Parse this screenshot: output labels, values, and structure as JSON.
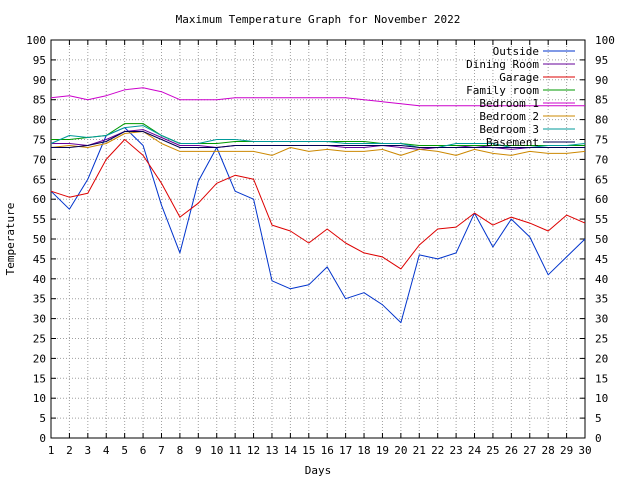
{
  "chart_data": {
    "type": "line",
    "title": "Maximum Temperature Graph for November 2022",
    "xlabel": "Days",
    "ylabel": "Temperature",
    "xlim": [
      1,
      30
    ],
    "ylim": [
      0,
      100
    ],
    "x_ticks": [
      1,
      2,
      3,
      4,
      5,
      6,
      7,
      8,
      9,
      10,
      11,
      12,
      13,
      14,
      15,
      16,
      17,
      18,
      19,
      20,
      21,
      22,
      23,
      24,
      25,
      26,
      27,
      28,
      29,
      30
    ],
    "y_ticks": [
      0,
      5,
      10,
      15,
      20,
      25,
      30,
      35,
      40,
      45,
      50,
      55,
      60,
      65,
      70,
      75,
      80,
      85,
      90,
      95,
      100
    ],
    "grid": true,
    "legend_position": "top-right",
    "x": [
      1,
      2,
      3,
      4,
      5,
      6,
      7,
      8,
      9,
      10,
      11,
      12,
      13,
      14,
      15,
      16,
      17,
      18,
      19,
      20,
      21,
      22,
      23,
      24,
      25,
      26,
      27,
      28,
      29,
      30
    ],
    "series": [
      {
        "name": "Outside",
        "color": "#0033cc",
        "values": [
          62,
          57.5,
          65,
          76,
          78,
          73.5,
          58.5,
          46.5,
          64.5,
          73,
          62,
          60,
          39.5,
          37.5,
          38.5,
          43,
          35,
          36.5,
          33.5,
          29,
          46,
          45,
          46.5,
          56.5,
          48,
          55,
          50.5,
          41,
          45.5,
          50
        ]
      },
      {
        "name": "Dining Room",
        "color": "#660099",
        "values": [
          74,
          74,
          73.5,
          75,
          77,
          77.5,
          75.5,
          73.5,
          73.5,
          73,
          73.5,
          73.5,
          73.5,
          73.5,
          73.5,
          73.5,
          73,
          73,
          73.5,
          73,
          72.5,
          73,
          73,
          73.5,
          73,
          72.5,
          73,
          73,
          73,
          73
        ]
      },
      {
        "name": "Garage",
        "color": "#dd0000",
        "values": [
          62,
          60.5,
          61.5,
          70,
          75,
          71,
          64,
          55.5,
          59,
          64,
          66,
          65,
          53.5,
          52,
          49,
          52.5,
          49,
          46.5,
          45.5,
          42.5,
          48.5,
          52.5,
          53,
          56.5,
          53.5,
          55.5,
          54,
          52,
          56,
          54
        ]
      },
      {
        "name": "Family room",
        "color": "#009900",
        "values": [
          75,
          75,
          75.5,
          76,
          79,
          79,
          76,
          74,
          74,
          74,
          74.5,
          74.5,
          74.5,
          74.5,
          74.5,
          74.5,
          74.5,
          74.5,
          74,
          74,
          73.5,
          73.5,
          73.5,
          73.5,
          73.5,
          73.5,
          73.5,
          73.5,
          73.5,
          73.5
        ]
      },
      {
        "name": "Bedroom 1",
        "color": "#cc00cc",
        "values": [
          85.5,
          86,
          85,
          86,
          87.5,
          88,
          87,
          85,
          85,
          85,
          85.5,
          85.5,
          85.5,
          85.5,
          85.5,
          85.5,
          85.5,
          85,
          84.5,
          84,
          83.5,
          83.5,
          83.5,
          83.5,
          83.5,
          83.5,
          83.5,
          83.5,
          83.5,
          83.5
        ]
      },
      {
        "name": "Bedroom 2",
        "color": "#cc8800",
        "values": [
          73,
          73.5,
          73,
          74,
          76.5,
          77,
          74,
          72,
          72,
          72,
          72,
          72,
          71,
          73,
          72,
          72.5,
          72,
          72,
          72.5,
          71,
          72.5,
          72,
          71,
          72.5,
          71.5,
          71,
          72,
          71.5,
          71.5,
          72
        ]
      },
      {
        "name": "Bedroom 3",
        "color": "#009999",
        "values": [
          74,
          76,
          75.5,
          76,
          78,
          78.5,
          76,
          74,
          74,
          75,
          75,
          74.5,
          74.5,
          74.5,
          74.5,
          74.5,
          74,
          74,
          74,
          74,
          73,
          73,
          74,
          74,
          74,
          73,
          73,
          73.5,
          73.5,
          74
        ]
      },
      {
        "name": "Basement",
        "color": "#000055",
        "values": [
          73,
          73,
          73.5,
          74.5,
          77,
          77,
          75,
          73,
          73,
          73,
          73.5,
          73.5,
          73.5,
          73.5,
          73.5,
          73.5,
          73.5,
          73.5,
          73.5,
          73.5,
          73,
          73,
          73,
          73,
          73,
          73,
          73,
          73,
          73,
          73
        ]
      }
    ]
  }
}
